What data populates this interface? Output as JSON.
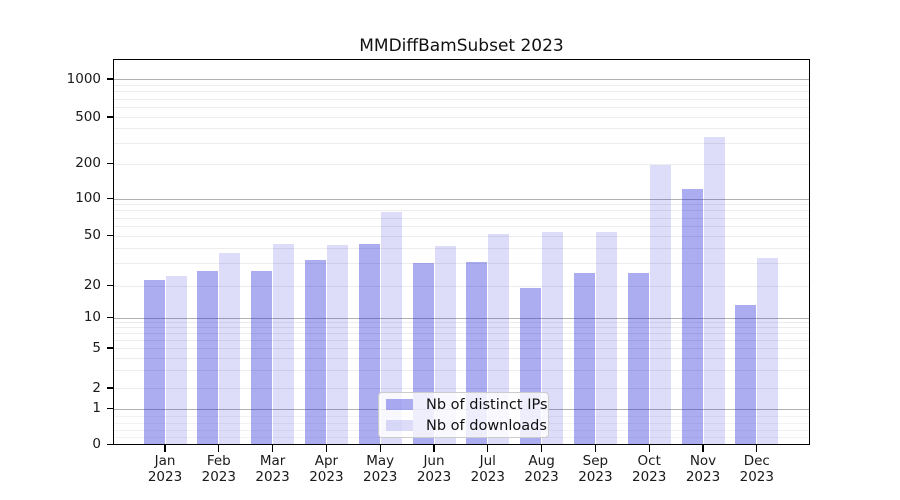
{
  "chart_data": {
    "type": "bar",
    "title": "MMDiffBamSubset 2023",
    "categories": [
      "Jan",
      "Feb",
      "Mar",
      "Apr",
      "May",
      "Jun",
      "Jul",
      "Aug",
      "Sep",
      "Oct",
      "Nov",
      "Dec"
    ],
    "category_year": "2023",
    "series": [
      {
        "name": "Nb of distinct IPs",
        "color": "#2525da",
        "alpha": 0.38,
        "values": [
          22,
          26,
          26,
          32,
          43,
          30,
          31,
          19,
          25,
          25,
          120,
          13
        ]
      },
      {
        "name": "Nb of downloads",
        "color": "#2525da",
        "alpha": 0.155,
        "values": [
          24,
          36,
          43,
          42,
          78,
          41,
          51,
          53,
          53,
          195,
          340,
          33
        ]
      }
    ],
    "yscale": "symlog",
    "yticks": [
      0,
      1,
      2,
      5,
      10,
      20,
      50,
      100,
      200,
      500,
      1000
    ],
    "major_gridline_values": [
      1,
      10,
      100,
      1000
    ],
    "ylim": [
      0,
      1500
    ],
    "xlabel": "",
    "ylabel": "",
    "grid": true,
    "legend_position": "lower center",
    "background_color": "#ffffff",
    "axis_color": "#000000",
    "major_grid_color": "#b0b0b0",
    "minor_grid_color": "#ececec"
  }
}
